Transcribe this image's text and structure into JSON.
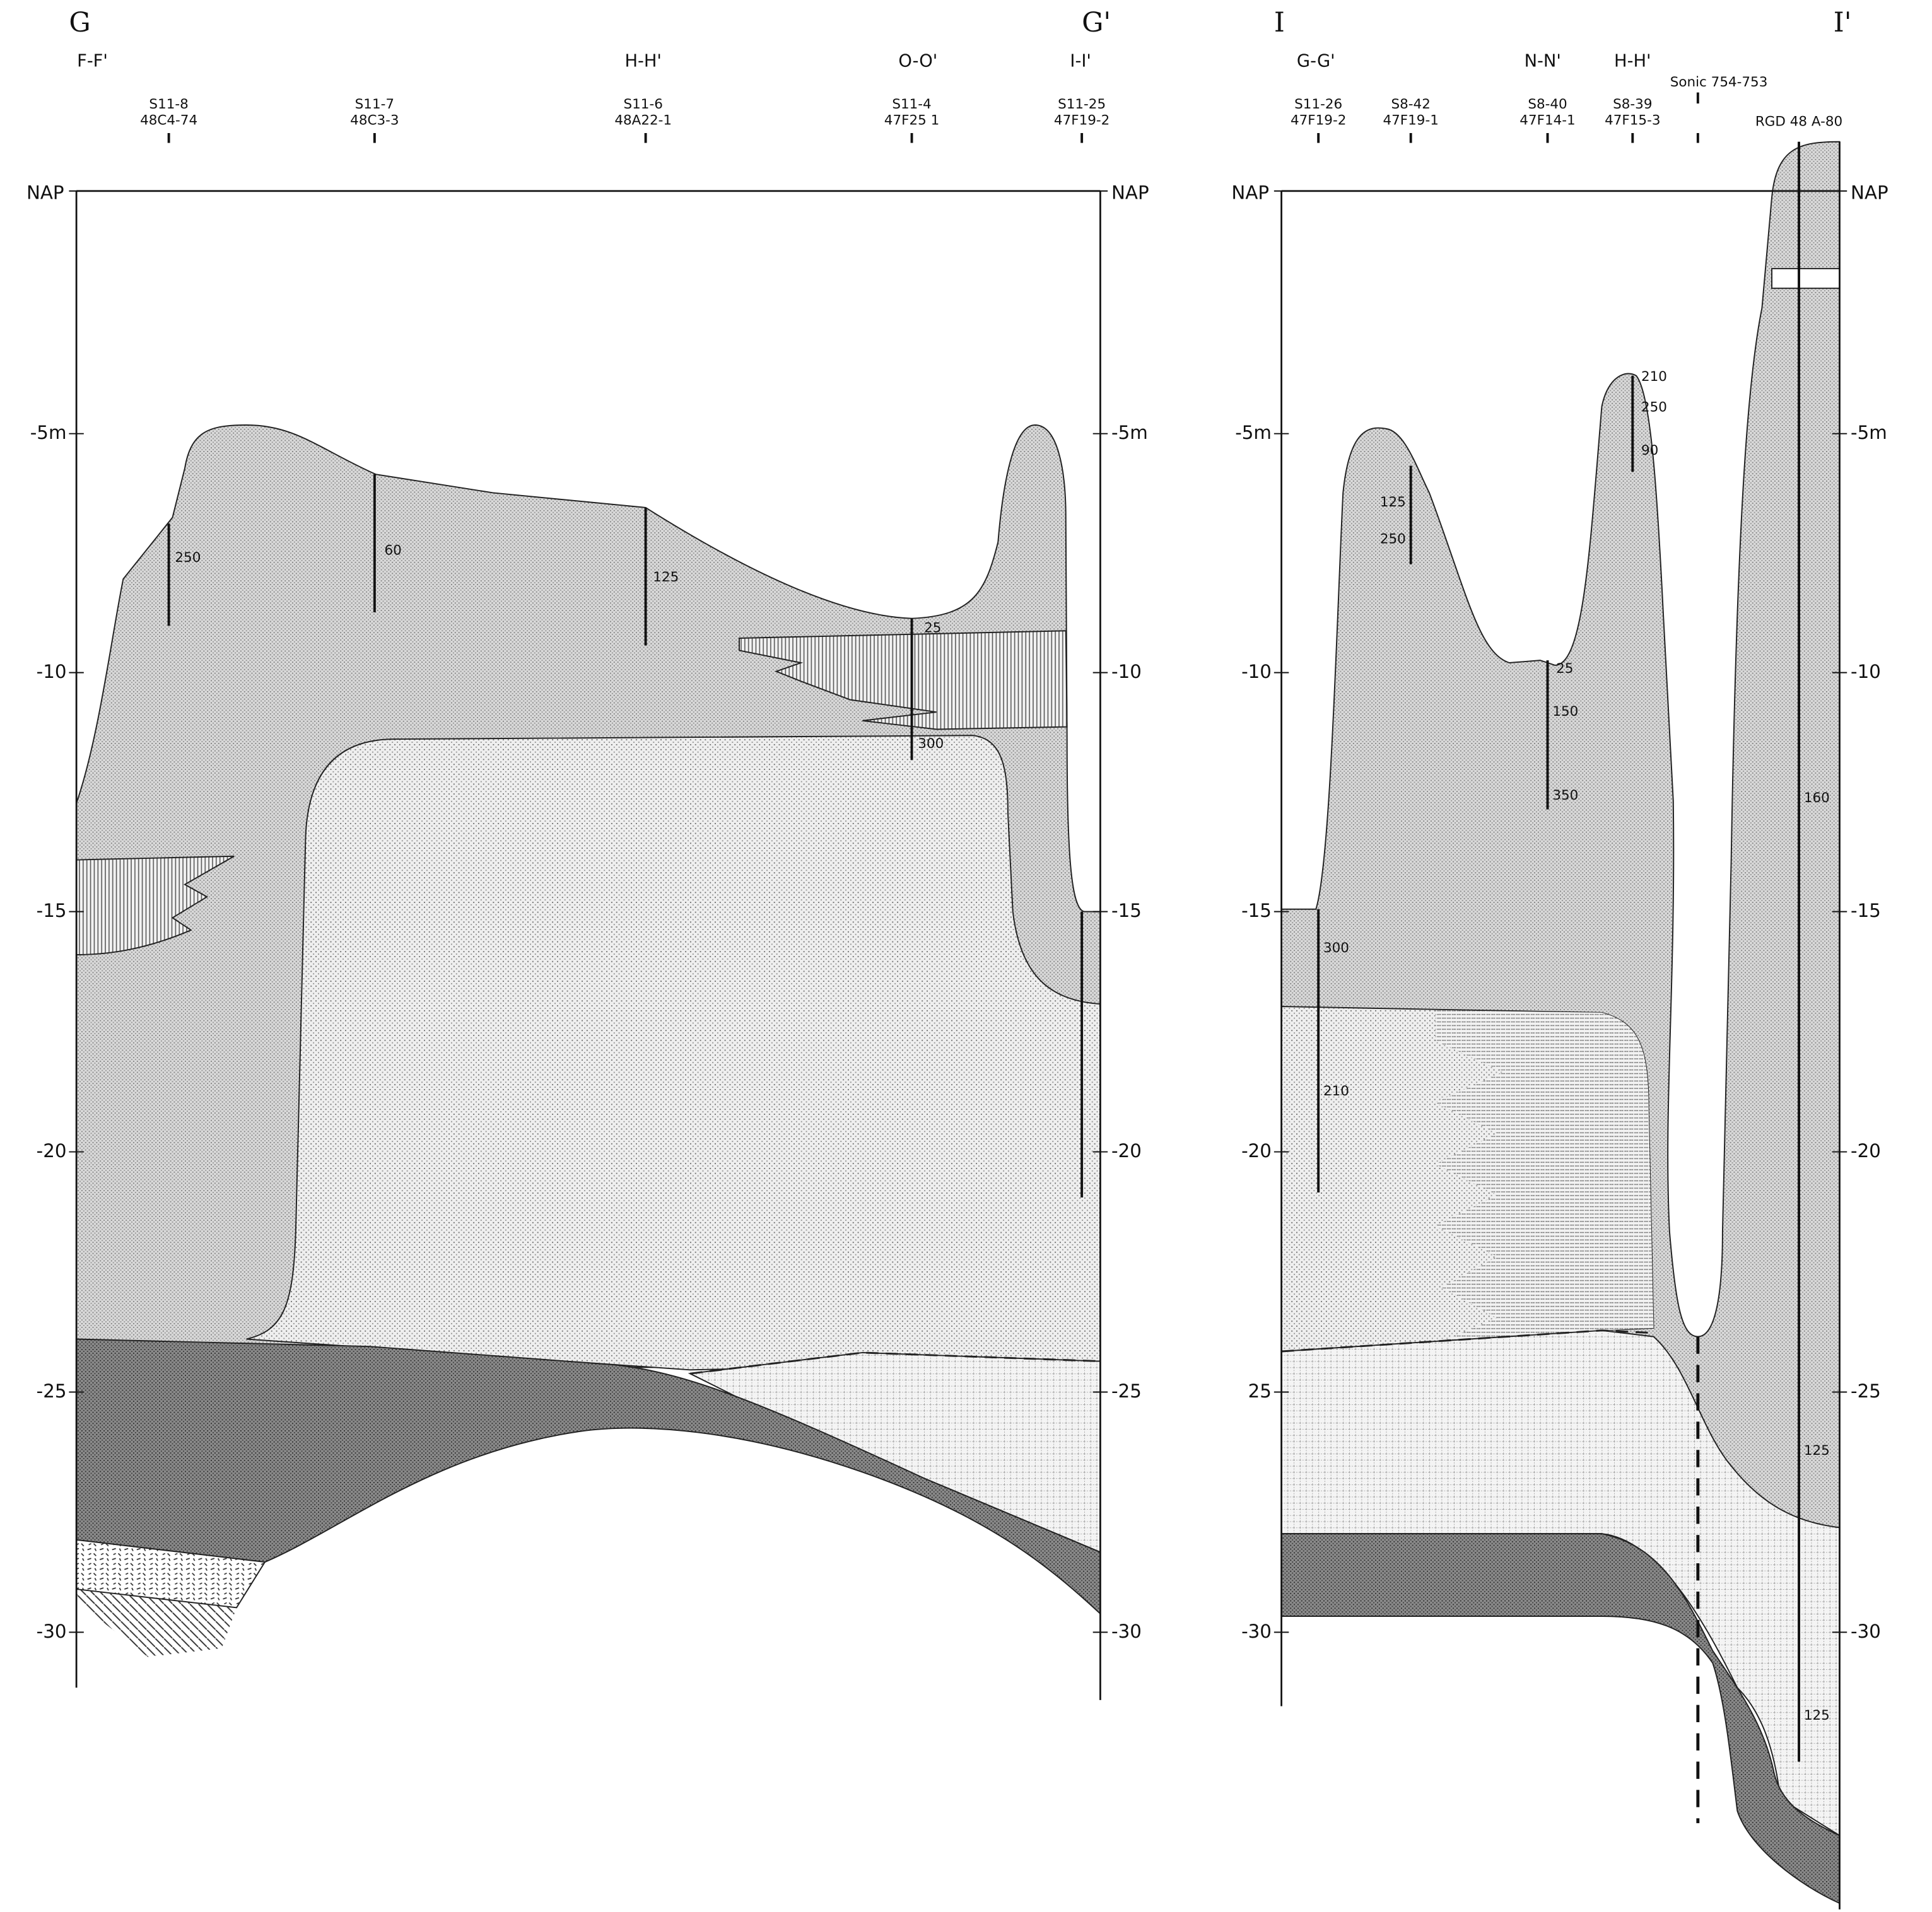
{
  "sections": [
    {
      "start_label": "G",
      "end_label": "G'",
      "cross_sections": [
        "F-F'",
        "H-H'",
        "O-O'",
        "I-I'"
      ],
      "boreholes": [
        {
          "name": "S11-8",
          "code": "48C4-74"
        },
        {
          "name": "S11-7",
          "code": "48C3-3"
        },
        {
          "name": "S11-6",
          "code": "48A22-1"
        },
        {
          "name": "S11-4",
          "code": "47F25 1"
        },
        {
          "name": "S11-25",
          "code": "47F19-2"
        }
      ],
      "depth_left": [
        "NAP",
        "-5m",
        "-10",
        "-15",
        "-20",
        "-25",
        "-30"
      ],
      "depth_right": [
        "NAP",
        "-5m",
        "-10",
        "-15",
        "-20",
        "-25",
        "-30"
      ],
      "annotations": [
        "250",
        "60",
        "125",
        "25",
        "300"
      ]
    },
    {
      "start_label": "I",
      "end_label": "I'",
      "cross_sections": [
        "G-G'",
        "N-N'",
        "H-H'"
      ],
      "boreholes": [
        {
          "name": "S11-26",
          "code": "47F19-2"
        },
        {
          "name": "S8-42",
          "code": "47F19-1"
        },
        {
          "name": "S8-40",
          "code": "47F14-1"
        },
        {
          "name": "S8-39",
          "code": "47F15-3"
        },
        {
          "name": "Sonic 754-753"
        },
        {
          "name": "RGD 48 A-80"
        }
      ],
      "depth_left": [
        "NAP",
        "-5m",
        "-10",
        "-15",
        "-20",
        "25",
        "-30"
      ],
      "depth_right": [
        "NAP",
        "-5m",
        "-10",
        "-15",
        "-20",
        "-25",
        "-30"
      ],
      "annotations": [
        "125",
        "250",
        "210",
        "250",
        "90",
        "25",
        "150",
        "350",
        "300",
        "210",
        "160",
        "125",
        "125"
      ]
    }
  ]
}
